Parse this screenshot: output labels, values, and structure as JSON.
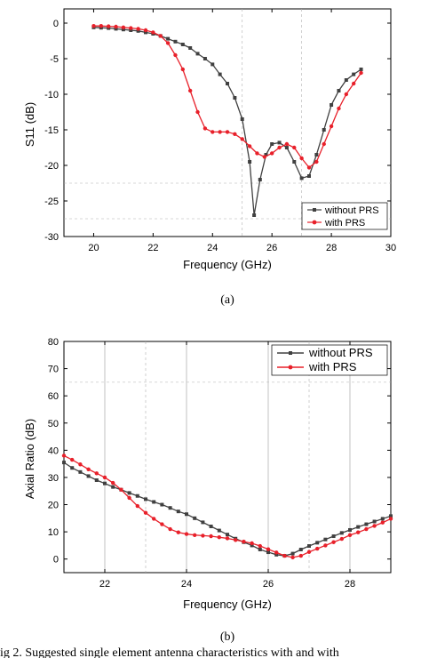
{
  "chart_data": [
    {
      "type": "line",
      "sublabel": "(a)",
      "xlabel": "Frequency (GHz)",
      "ylabel": "S11 (dB)",
      "xlim": [
        19,
        30
      ],
      "ylim": [
        -30,
        2
      ],
      "xticks": [
        20,
        22,
        24,
        26,
        28,
        30
      ],
      "yticks": [
        0,
        -5,
        -10,
        -15,
        -20,
        -25,
        -30
      ],
      "legend_position": "bottom-right",
      "series": [
        {
          "name": "without PRS",
          "color": "#404040",
          "marker": "square",
          "x": [
            20.0,
            20.25,
            20.5,
            20.75,
            21.0,
            21.25,
            21.5,
            21.75,
            22.0,
            22.25,
            22.5,
            22.75,
            23.0,
            23.25,
            23.5,
            23.75,
            24.0,
            24.25,
            24.5,
            24.75,
            25.0,
            25.25,
            25.4,
            25.6,
            25.8,
            26.0,
            26.25,
            26.5,
            26.75,
            27.0,
            27.25,
            27.5,
            27.75,
            28.0,
            28.25,
            28.5,
            28.75,
            29.0
          ],
          "y": [
            -0.6,
            -0.65,
            -0.7,
            -0.8,
            -0.9,
            -1.0,
            -1.1,
            -1.3,
            -1.5,
            -1.8,
            -2.2,
            -2.6,
            -3.0,
            -3.5,
            -4.3,
            -5.0,
            -5.8,
            -7.2,
            -8.5,
            -10.5,
            -13.5,
            -19.5,
            -27.0,
            -22.0,
            -18.5,
            -17.0,
            -16.8,
            -17.5,
            -19.5,
            -21.8,
            -21.5,
            -18.5,
            -15.0,
            -11.5,
            -9.5,
            -8.0,
            -7.2,
            -6.5
          ]
        },
        {
          "name": "with PRS",
          "color": "#e8202a",
          "marker": "circle",
          "x": [
            20.0,
            20.25,
            20.5,
            20.75,
            21.0,
            21.25,
            21.5,
            21.75,
            22.0,
            22.25,
            22.5,
            22.75,
            23.0,
            23.25,
            23.5,
            23.75,
            24.0,
            24.25,
            24.5,
            24.75,
            25.0,
            25.25,
            25.5,
            25.75,
            26.0,
            26.25,
            26.5,
            26.75,
            27.0,
            27.25,
            27.5,
            27.75,
            28.0,
            28.25,
            28.5,
            28.75,
            29.0
          ],
          "y": [
            -0.4,
            -0.4,
            -0.45,
            -0.5,
            -0.6,
            -0.7,
            -0.8,
            -1.0,
            -1.3,
            -1.8,
            -2.8,
            -4.5,
            -6.5,
            -9.5,
            -12.5,
            -14.8,
            -15.3,
            -15.3,
            -15.3,
            -15.6,
            -16.3,
            -17.3,
            -18.3,
            -18.8,
            -18.3,
            -17.5,
            -17.0,
            -17.5,
            -19.0,
            -20.3,
            -19.5,
            -17.0,
            -14.5,
            -12.0,
            -10.0,
            -8.5,
            -7.0
          ]
        }
      ]
    },
    {
      "type": "line",
      "sublabel": "(b)",
      "xlabel": "Frequency (GHz)",
      "ylabel": "Axial Ratio (dB)",
      "xlim": [
        21,
        29
      ],
      "ylim": [
        -5,
        80
      ],
      "xticks": [
        22,
        24,
        26,
        28
      ],
      "yticks": [
        0,
        10,
        20,
        30,
        40,
        50,
        60,
        70,
        80
      ],
      "legend_position": "top-right",
      "series": [
        {
          "name": "without PRS",
          "color": "#404040",
          "marker": "square",
          "x": [
            21.0,
            21.2,
            21.4,
            21.6,
            21.8,
            22.0,
            22.2,
            22.4,
            22.6,
            22.8,
            23.0,
            23.2,
            23.4,
            23.6,
            23.8,
            24.0,
            24.2,
            24.4,
            24.6,
            24.8,
            25.0,
            25.2,
            25.4,
            25.6,
            25.8,
            26.0,
            26.2,
            26.4,
            26.6,
            26.8,
            27.0,
            27.2,
            27.4,
            27.6,
            27.8,
            28.0,
            28.2,
            28.4,
            28.6,
            28.8,
            29.0
          ],
          "y": [
            35.5,
            33.5,
            32.0,
            30.5,
            29.0,
            27.8,
            26.5,
            25.5,
            24.3,
            23.2,
            22.0,
            21.0,
            20.0,
            18.8,
            17.5,
            16.5,
            15.0,
            13.5,
            12.0,
            10.5,
            9.0,
            7.5,
            6.2,
            5.0,
            3.5,
            2.5,
            1.6,
            1.2,
            2.0,
            3.5,
            4.8,
            6.0,
            7.2,
            8.4,
            9.6,
            10.7,
            11.8,
            12.8,
            13.8,
            14.8,
            15.8
          ]
        },
        {
          "name": "with PRS",
          "color": "#e8202a",
          "marker": "circle",
          "x": [
            21.0,
            21.2,
            21.4,
            21.6,
            21.8,
            22.0,
            22.2,
            22.4,
            22.6,
            22.8,
            23.0,
            23.2,
            23.4,
            23.6,
            23.8,
            24.0,
            24.2,
            24.4,
            24.6,
            24.8,
            25.0,
            25.2,
            25.4,
            25.6,
            25.8,
            26.0,
            26.2,
            26.4,
            26.6,
            26.8,
            27.0,
            27.2,
            27.4,
            27.6,
            27.8,
            28.0,
            28.2,
            28.4,
            28.6,
            28.8,
            29.0
          ],
          "y": [
            38.0,
            36.5,
            34.8,
            33.0,
            31.5,
            30.0,
            28.0,
            25.5,
            22.5,
            19.5,
            17.0,
            14.8,
            12.8,
            11.0,
            9.8,
            9.2,
            8.8,
            8.6,
            8.4,
            8.0,
            7.6,
            7.0,
            6.4,
            5.8,
            4.8,
            3.6,
            2.4,
            1.2,
            0.6,
            1.2,
            2.6,
            3.8,
            5.0,
            6.2,
            7.4,
            8.8,
            9.8,
            11.0,
            12.2,
            13.4,
            14.8
          ]
        }
      ]
    }
  ],
  "caption": "ig 2.  Suggested single element antenna characteristics with and with"
}
